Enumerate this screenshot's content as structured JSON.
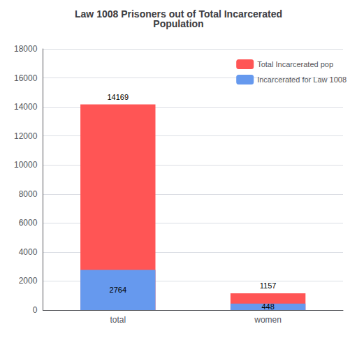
{
  "chart_data": {
    "type": "bar",
    "title": "Law 1008 Prisoners out of Total Incarcerated\nPopulation",
    "categories": [
      "total",
      "women"
    ],
    "series": [
      {
        "name": "Total Incarcerated pop",
        "color": "#FF5555",
        "values": [
          14169,
          1157
        ]
      },
      {
        "name": "Incarcerated for Law 1008",
        "color": "#6699EE",
        "values": [
          2764,
          448
        ]
      }
    ],
    "ylim": [
      0,
      18000
    ],
    "yticks": [
      0,
      2000,
      4000,
      6000,
      8000,
      10000,
      12000,
      14000,
      16000,
      18000
    ],
    "grid": true,
    "legend": "upper right",
    "data_labels": true
  }
}
